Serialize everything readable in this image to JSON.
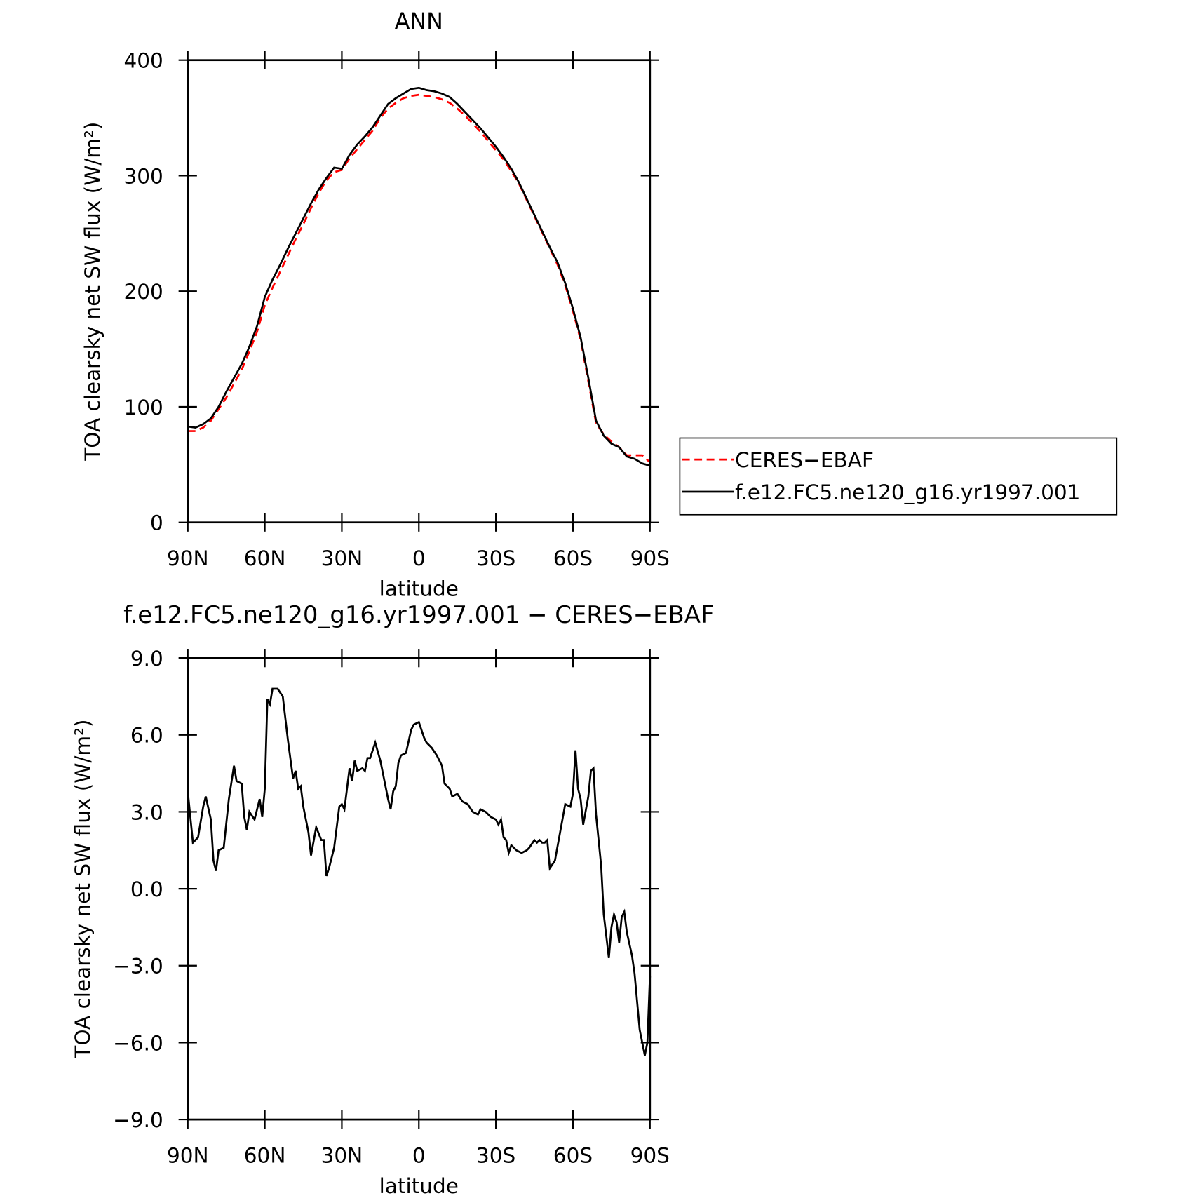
{
  "chart_data": [
    {
      "type": "line",
      "title": "ANN",
      "xlabel": "latitude",
      "ylabel": "TOA clearsky net SW flux (W/m²)",
      "x": [
        90,
        87,
        84,
        81,
        78,
        75,
        72,
        69,
        66,
        63,
        60,
        57,
        54,
        51,
        48,
        45,
        42,
        39,
        36,
        33,
        30,
        27,
        24,
        21,
        18,
        15,
        12,
        9,
        6,
        3,
        0,
        -3,
        -6,
        -9,
        -12,
        -15,
        -18,
        -21,
        -24,
        -27,
        -30,
        -33,
        -36,
        -39,
        -42,
        -45,
        -48,
        -51,
        -54,
        -57,
        -60,
        -63,
        -66,
        -69,
        -72,
        -75,
        -78,
        -81,
        -84,
        -87,
        -90
      ],
      "series": [
        {
          "name": "CERES−EBAF",
          "color": "#ff0000",
          "linestyle": "dashed",
          "values": [
            79,
            79,
            82,
            88,
            98,
            108,
            120,
            132,
            148,
            165,
            188,
            203,
            217,
            231,
            245,
            258,
            272,
            285,
            296,
            303,
            305,
            315,
            323,
            331,
            339,
            350,
            358,
            363,
            367,
            369,
            370,
            369,
            368,
            366,
            363,
            358,
            352,
            345,
            338,
            330,
            322,
            314,
            304,
            293,
            279,
            265,
            251,
            237,
            223,
            205,
            183,
            158,
            122,
            86,
            76,
            70,
            65,
            58,
            58,
            58,
            52
          ]
        },
        {
          "name": "f.e12.FC5.ne120_g16.yr1997.001",
          "color": "#000000",
          "linestyle": "solid",
          "values": [
            83,
            82,
            85,
            90,
            100,
            113,
            125,
            137,
            152,
            170,
            195,
            210,
            223,
            237,
            250,
            263,
            276,
            288,
            298,
            307,
            306,
            318,
            327,
            334,
            342,
            352,
            362,
            367,
            371,
            375,
            376,
            374,
            373,
            371,
            368,
            362,
            355,
            348,
            341,
            333,
            325,
            316,
            306,
            294,
            280,
            266,
            252,
            238,
            225,
            207,
            185,
            160,
            125,
            88,
            75,
            68,
            65,
            57,
            55,
            51,
            49
          ]
        }
      ],
      "xlim": [
        90,
        -90
      ],
      "xticks": [
        {
          "value": 90,
          "label": "90N"
        },
        {
          "value": 60,
          "label": "60N"
        },
        {
          "value": 30,
          "label": "30N"
        },
        0,
        {
          "value": -30,
          "label": "30S"
        },
        {
          "value": -60,
          "label": "60S"
        },
        {
          "value": -90,
          "label": "90S"
        }
      ],
      "ylim": [
        0,
        400
      ],
      "yticks": [
        0,
        100,
        200,
        300,
        400
      ],
      "legend": "right"
    },
    {
      "type": "line",
      "title": "f.e12.FC5.ne120_g16.yr1997.001 − CERES−EBAF",
      "xlabel": "latitude",
      "ylabel": "TOA clearsky net SW flux (W/m²)",
      "x": [
        90,
        88,
        86,
        84,
        83,
        81,
        80,
        79,
        78,
        76,
        74,
        72,
        71,
        69,
        68,
        67,
        66,
        64,
        62,
        61,
        60,
        59,
        58,
        57,
        55,
        53,
        51,
        49,
        48,
        47,
        46,
        45,
        43,
        42,
        40,
        38,
        37,
        36,
        35,
        33,
        31,
        30,
        29,
        27,
        26,
        25,
        24,
        22,
        21,
        20,
        19,
        17,
        15,
        13,
        12,
        11,
        10,
        9,
        8,
        7,
        5,
        3,
        2,
        0,
        -2,
        -3,
        -5,
        -7,
        -9,
        -10,
        -12,
        -13,
        -15,
        -17,
        -19,
        -21,
        -23,
        -24,
        -26,
        -28,
        -30,
        -31,
        -32,
        -33,
        -34,
        -35,
        -36,
        -38,
        -40,
        -42,
        -43,
        -45,
        -46,
        -47,
        -48,
        -49,
        -50,
        -51,
        -53,
        -55,
        -57,
        -59,
        -60,
        -61,
        -62,
        -63,
        -64,
        -66,
        -67,
        -68,
        -69,
        -71,
        -72,
        -74,
        -75,
        -76,
        -77,
        -78,
        -79,
        -80,
        -81,
        -83,
        -84,
        -86,
        -88,
        -89,
        -90
      ],
      "series": [
        {
          "name": "f.e12.FC5.ne120_g16.yr1997.001 − CERES−EBAF",
          "color": "#000000",
          "linestyle": "solid",
          "values": [
            3.8,
            1.8,
            2.0,
            3.2,
            3.6,
            2.7,
            1.1,
            0.7,
            1.5,
            1.6,
            3.5,
            4.8,
            4.2,
            4.1,
            2.8,
            2.3,
            3.0,
            2.7,
            3.5,
            2.8,
            3.9,
            7.4,
            7.2,
            7.8,
            7.8,
            7.5,
            5.8,
            4.3,
            4.6,
            3.9,
            4.0,
            3.2,
            2.2,
            1.3,
            2.4,
            1.9,
            1.9,
            0.5,
            0.8,
            1.6,
            3.2,
            3.3,
            3.1,
            4.7,
            4.2,
            5.0,
            4.6,
            4.7,
            4.6,
            5.1,
            5.1,
            5.7,
            5.0,
            4.0,
            3.5,
            3.1,
            3.8,
            4.0,
            4.9,
            5.2,
            5.3,
            6.2,
            6.4,
            6.5,
            5.9,
            5.7,
            5.5,
            5.2,
            4.8,
            4.1,
            3.9,
            3.6,
            3.7,
            3.4,
            3.3,
            3.0,
            2.9,
            3.1,
            3.0,
            2.8,
            2.7,
            2.5,
            2.7,
            2.0,
            1.9,
            1.4,
            1.7,
            1.5,
            1.4,
            1.5,
            1.6,
            1.9,
            1.8,
            1.9,
            1.8,
            1.8,
            1.9,
            0.8,
            1.1,
            2.2,
            3.3,
            3.2,
            3.7,
            5.4,
            3.9,
            3.5,
            2.5,
            3.6,
            4.6,
            4.7,
            2.9,
            0.9,
            -1.0,
            -2.7,
            -1.5,
            -1.0,
            -1.3,
            -2.1,
            -1.1,
            -0.9,
            -1.7,
            -2.6,
            -3.3,
            -5.5,
            -6.5,
            -6.0,
            -3.4
          ]
        }
      ],
      "xlim": [
        90,
        -90
      ],
      "xticks": [
        {
          "value": 90,
          "label": "90N"
        },
        {
          "value": 60,
          "label": "60N"
        },
        {
          "value": 30,
          "label": "30N"
        },
        0,
        {
          "value": -30,
          "label": "30S"
        },
        {
          "value": -60,
          "label": "60S"
        },
        {
          "value": -90,
          "label": "90S"
        }
      ],
      "ylim": [
        -9,
        9
      ],
      "yticks": [
        {
          "value": -9,
          "label": "−9.0"
        },
        {
          "value": -6,
          "label": "−6.0"
        },
        {
          "value": -3,
          "label": "−3.0"
        },
        {
          "value": 0,
          "label": "0.0"
        },
        {
          "value": 3,
          "label": "3.0"
        },
        {
          "value": 6,
          "label": "6.0"
        },
        {
          "value": 9,
          "label": "9.0"
        }
      ]
    }
  ]
}
